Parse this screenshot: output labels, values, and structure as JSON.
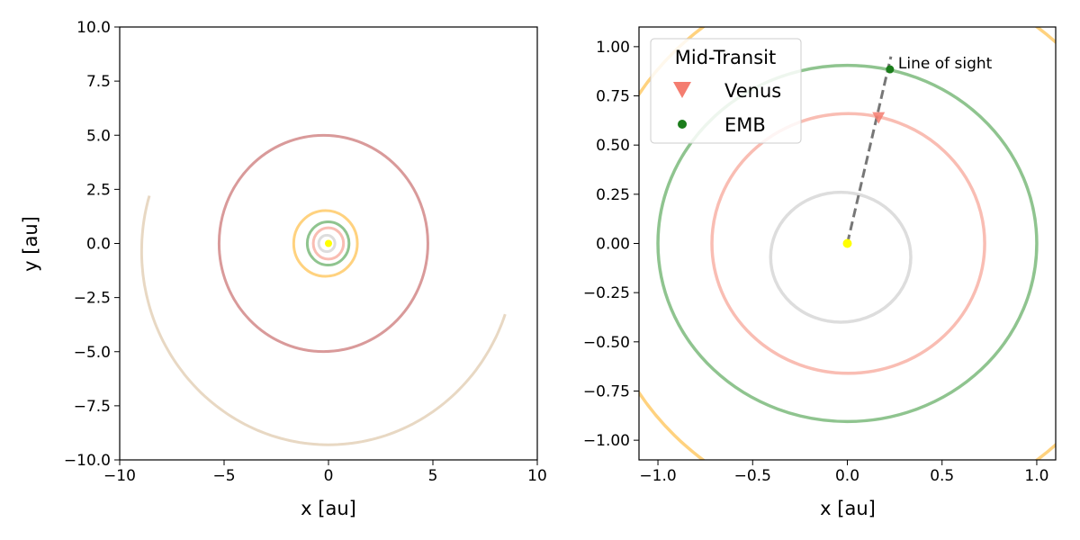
{
  "chart_data": [
    {
      "type": "line",
      "panel": "left",
      "xlabel": "x [au]",
      "ylabel": "y [au]",
      "xlim": [
        -10,
        10
      ],
      "ylim": [
        -10,
        10
      ],
      "xticks": [
        -10,
        -5,
        0,
        5,
        10
      ],
      "xtick_labels": [
        "−10",
        "−5",
        "0",
        "5",
        "10"
      ],
      "yticks": [
        -10,
        -7.5,
        -5,
        -2.5,
        0,
        2.5,
        5,
        7.5,
        10
      ],
      "ytick_labels": [
        "−10.0",
        "−7.5",
        "−5.0",
        "−2.5",
        "0.0",
        "2.5",
        "5.0",
        "7.5",
        "10.0"
      ],
      "grid": false,
      "orbits": [
        {
          "color": "#dddddd",
          "a": 0.387,
          "e": 0.2056,
          "full": true
        },
        {
          "color": "#f9bdb3",
          "a": 0.723,
          "e": 0.0068,
          "full": true
        },
        {
          "color": "#8fc48f",
          "a": 1.0,
          "e": 0.0167,
          "full": true
        },
        {
          "color": "#ffd27f",
          "a": 1.524,
          "e": 0.0934,
          "full": true
        },
        {
          "color": "#d99a9a",
          "a": 5.0,
          "e": 0.048,
          "full": true
        },
        {
          "color": "#e8d8c3",
          "arc": true,
          "start": [
            8.85,
            -3.4
          ],
          "end": [
            -8.9,
            2.3
          ],
          "center": [
            0,
            -0.35
          ],
          "r": 8.95
        }
      ],
      "sun": {
        "x": 0,
        "y": 0,
        "color": "#ffff00"
      }
    },
    {
      "type": "scatter",
      "panel": "right",
      "xlabel": "x [au]",
      "ylabel": "",
      "xlim": [
        -1.1,
        1.1
      ],
      "ylim": [
        -1.1,
        1.1
      ],
      "xticks": [
        -1.0,
        -0.5,
        0.0,
        0.5,
        1.0
      ],
      "xtick_labels": [
        "−1.0",
        "−0.5",
        "0.0",
        "0.5",
        "1.0"
      ],
      "yticks": [
        -1.0,
        -0.75,
        -0.5,
        -0.25,
        0.0,
        0.25,
        0.5,
        0.75,
        1.0
      ],
      "ytick_labels": [
        "−1.00",
        "−0.75",
        "−0.50",
        "−0.25",
        "0.00",
        "0.25",
        "0.50",
        "0.75",
        "1.00"
      ],
      "grid": false,
      "orbits": [
        {
          "color": "#dddddd",
          "cx": -0.035,
          "cy": -0.07,
          "rx": 0.37,
          "ry": 0.33
        },
        {
          "color": "#f9bdb3",
          "cx": 0.005,
          "cy": 0.0,
          "rx": 0.72,
          "ry": 0.66
        },
        {
          "color": "#8fc48f",
          "cx": 0.0,
          "cy": 0.0,
          "rx": 1.0,
          "ry": 0.905
        },
        {
          "color": "#ffd27f",
          "cx": 0.12,
          "cy": 0.0,
          "rx": 1.46,
          "ry": 1.38
        }
      ],
      "sun": {
        "x": 0,
        "y": 0,
        "color": "#ffff00"
      },
      "line_of_sight": {
        "from": [
          0,
          0
        ],
        "to": [
          0.23,
          0.95
        ],
        "label": "Line of sight",
        "color": "#777777"
      },
      "points": [
        {
          "name": "Venus",
          "x": 0.165,
          "y": 0.64,
          "marker": "triangle-down",
          "color": "#f47d70"
        },
        {
          "name": "EMB",
          "x": 0.225,
          "y": 0.885,
          "marker": "circle",
          "color": "#1b7d1b"
        }
      ],
      "legend": {
        "title": "Mid-Transit",
        "placement": "top-left",
        "entries": [
          {
            "label": "Venus",
            "marker": "triangle-down",
            "color": "#f47d70"
          },
          {
            "label": "EMB",
            "marker": "circle",
            "color": "#1b7d1b"
          }
        ]
      }
    }
  ]
}
